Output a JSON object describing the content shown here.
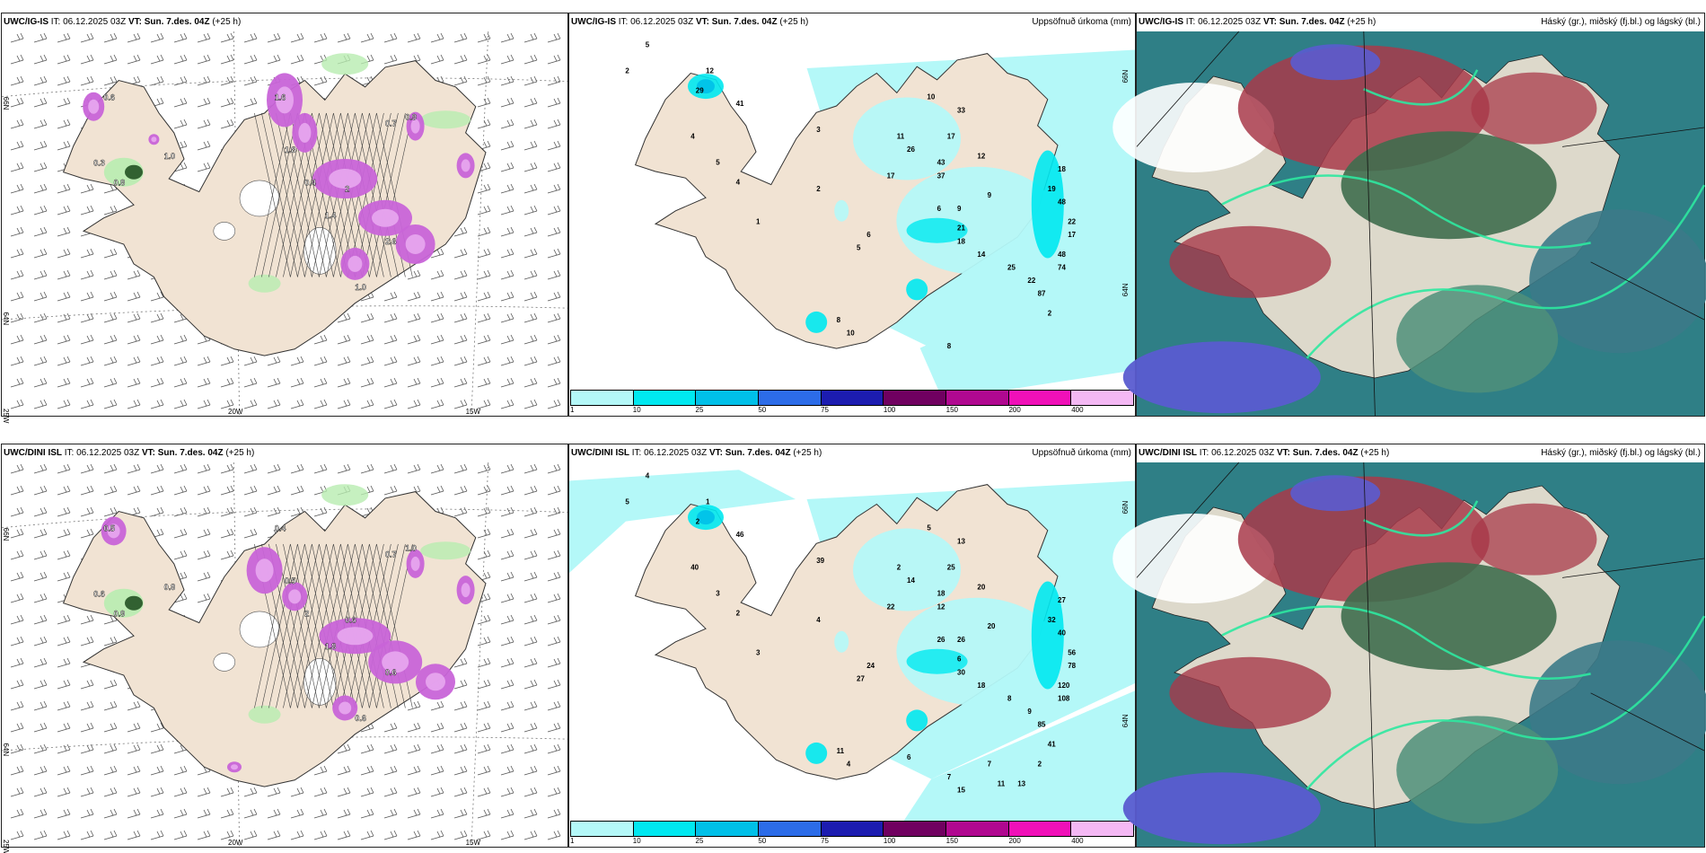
{
  "rows": [
    {
      "model": "UWC/IG-IS",
      "panels": [
        {
          "kind": "wind",
          "it_label": "IT: 06.12.2025 03Z",
          "vt_label": "VT: Sun. 7.des. 04Z",
          "lead": "(+25 h)",
          "right_title": ""
        },
        {
          "kind": "precip",
          "it_label": "IT: 06.12.2025 03Z",
          "vt_label": "VT: Sun. 7.des. 04Z",
          "lead": "(+25 h)",
          "right_title": "Uppsöfnuð úrkoma (mm)"
        },
        {
          "kind": "cloud",
          "it_label": "IT: 06.12.2025 03Z",
          "vt_label": "VT: Sun. 7.des. 04Z",
          "lead": "(+25 h)",
          "right_title": "Háský (gr.), miðský (fj.bl.) og lágský (bl.)"
        }
      ],
      "wind_numbers": [
        "0.6",
        "0.3",
        "1.0",
        "0.8",
        "0.7",
        "0.9",
        "1.6",
        "0.4",
        "2",
        "1.4",
        "2.6",
        "1.8",
        "1.0"
      ],
      "precip_numbers": [
        "5",
        "2",
        "12",
        "29",
        "41",
        "3",
        "4",
        "5",
        "4",
        "2",
        "1",
        "10",
        "11",
        "26",
        "17",
        "43",
        "37",
        "33",
        "12",
        "17",
        "6",
        "9",
        "9",
        "21",
        "18",
        "14",
        "25",
        "22",
        "18",
        "19",
        "48",
        "22",
        "17",
        "48",
        "74",
        "87",
        "6",
        "5",
        "8",
        "10",
        "2",
        "8"
      ],
      "coords_left": [
        "66N",
        "64N",
        "25W"
      ],
      "coords_bottom": [
        "20W",
        "15W"
      ],
      "coords_right": [
        "66N",
        "64N"
      ]
    },
    {
      "model": "UWC/DINI ISL",
      "panels": [
        {
          "kind": "wind",
          "it_label": "IT: 06.12.2025 03Z",
          "vt_label": "VT: Sun. 7.des. 04Z",
          "lead": "(+25 h)",
          "right_title": ""
        },
        {
          "kind": "precip",
          "it_label": "IT: 06.12.2025 03Z",
          "vt_label": "VT: Sun. 7.des. 04Z",
          "lead": "(+25 h)",
          "right_title": "Uppsöfnuð úrkoma (mm)"
        },
        {
          "kind": "cloud",
          "it_label": "IT: 06.12.2025 03Z",
          "vt_label": "VT: Sun. 7.des. 04Z",
          "lead": "(+25 h)",
          "right_title": "Háský (gr.), miðský (fj.bl.) og lágský (bl.)"
        }
      ],
      "wind_numbers": [
        "0.5",
        "0.6",
        "0.8",
        "0.9",
        "0.7",
        "1.0",
        "0.4",
        "2",
        "0.6",
        "1.8",
        "0.6",
        "0.5",
        "0.6"
      ],
      "precip_numbers": [
        "4",
        "5",
        "1",
        "2",
        "46",
        "39",
        "40",
        "3",
        "2",
        "4",
        "3",
        "5",
        "2",
        "14",
        "25",
        "18",
        "12",
        "13",
        "20",
        "22",
        "26",
        "26",
        "20",
        "6",
        "30",
        "18",
        "8",
        "9",
        "27",
        "32",
        "40",
        "56",
        "78",
        "120",
        "108",
        "85",
        "24",
        "27",
        "11",
        "4",
        "41",
        "7",
        "6",
        "7",
        "2",
        "15",
        "11",
        "13"
      ],
      "coords_left": [
        "66N",
        "64N",
        "25W"
      ],
      "coords_bottom": [
        "20W",
        "15W"
      ],
      "coords_right": [
        "66N",
        "64N"
      ]
    }
  ],
  "legend": {
    "ticks": [
      "1",
      "10",
      "25",
      "50",
      "75",
      "100",
      "150",
      "200",
      "400"
    ],
    "colors": [
      "#b4f8f8",
      "#00e8f0",
      "#00c0e8",
      "#2c6ce8",
      "#1c1cb0",
      "#700060",
      "#b00890",
      "#f010b8",
      "#f4b8f4"
    ]
  },
  "colors": {
    "land": "#f1e3d3",
    "sea": "#ffffff",
    "precip_light": "#b4f8f8",
    "precip_mid": "#00e8f0",
    "wind_purple": "#c864d8",
    "wind_green": "#b8ecb0",
    "cloud_teal": "#2f7f86",
    "cloud_red": "#a83a4a",
    "cloud_blue": "#5a5cd0"
  }
}
